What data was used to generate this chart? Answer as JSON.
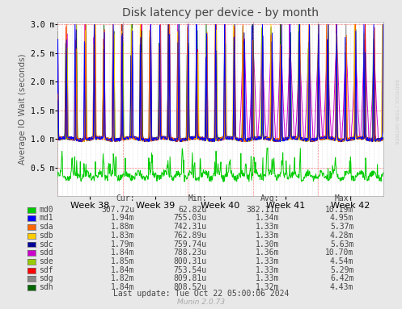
{
  "title": "Disk latency per device - by month",
  "ylabel": "Average IO Wait (seconds)",
  "x_labels": [
    "Week 38",
    "Week 39",
    "Week 40",
    "Week 41",
    "Week 42"
  ],
  "ylim": [
    0,
    3.0
  ],
  "background_color": "#e8e8e8",
  "plot_bg_color": "#ffffff",
  "series": [
    {
      "name": "md0",
      "color": "#00cc00"
    },
    {
      "name": "md1",
      "color": "#0000ff"
    },
    {
      "name": "sda",
      "color": "#ff6600"
    },
    {
      "name": "sdb",
      "color": "#ffcc00"
    },
    {
      "name": "sdc",
      "color": "#000099"
    },
    {
      "name": "sdd",
      "color": "#cc00cc"
    },
    {
      "name": "sde",
      "color": "#99cc00"
    },
    {
      "name": "sdf",
      "color": "#ff0000"
    },
    {
      "name": "sdg",
      "color": "#888888"
    },
    {
      "name": "sdh",
      "color": "#006600"
    }
  ],
  "legend_data": [
    {
      "name": "md0",
      "color": "#00cc00",
      "cur": "307.72u",
      "min": "62.82u",
      "avg": "382.11u",
      "max": "10.19m"
    },
    {
      "name": "md1",
      "color": "#0000ff",
      "cur": "1.94m",
      "min": "755.03u",
      "avg": "1.34m",
      "max": "4.95m"
    },
    {
      "name": "sda",
      "color": "#ff6600",
      "cur": "1.88m",
      "min": "742.31u",
      "avg": "1.33m",
      "max": "5.37m"
    },
    {
      "name": "sdb",
      "color": "#ffcc00",
      "cur": "1.83m",
      "min": "762.89u",
      "avg": "1.33m",
      "max": "4.28m"
    },
    {
      "name": "sdc",
      "color": "#000099",
      "cur": "1.79m",
      "min": "759.74u",
      "avg": "1.30m",
      "max": "5.63m"
    },
    {
      "name": "sdd",
      "color": "#cc00cc",
      "cur": "1.84m",
      "min": "788.23u",
      "avg": "1.36m",
      "max": "10.70m"
    },
    {
      "name": "sde",
      "color": "#99cc00",
      "cur": "1.85m",
      "min": "800.31u",
      "avg": "1.33m",
      "max": "4.54m"
    },
    {
      "name": "sdf",
      "color": "#ff0000",
      "cur": "1.84m",
      "min": "753.54u",
      "avg": "1.33m",
      "max": "5.29m"
    },
    {
      "name": "sdg",
      "color": "#888888",
      "cur": "1.82m",
      "min": "809.81u",
      "avg": "1.33m",
      "max": "6.42m"
    },
    {
      "name": "sdh",
      "color": "#006600",
      "cur": "1.84m",
      "min": "808.52u",
      "avg": "1.32m",
      "max": "4.43m"
    }
  ],
  "last_update": "Last update: Tue Oct 22 05:00:06 2024",
  "munin_version": "Munin 2.0.73",
  "watermark": "RRDTOOL / TOBI OETIKER"
}
